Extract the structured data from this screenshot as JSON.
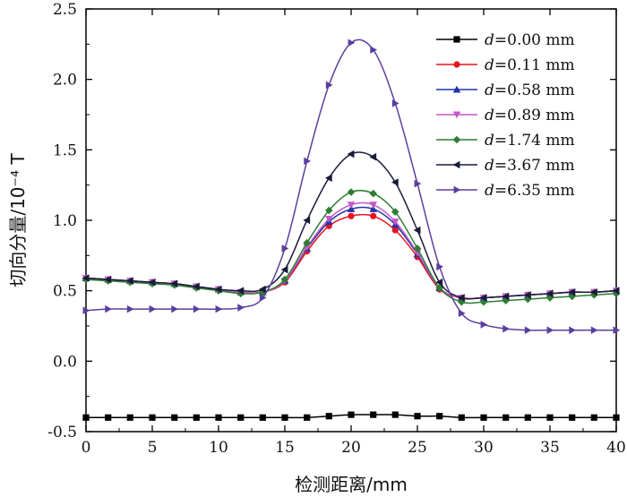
{
  "chart_data": {
    "type": "line",
    "title": "",
    "xlabel": "检测距离/mm",
    "ylabel": "切向分量/10⁻⁴ T",
    "xlim": [
      0,
      40
    ],
    "ylim": [
      -0.5,
      2.5
    ],
    "xticks": [
      0,
      5,
      10,
      15,
      20,
      25,
      30,
      35,
      40
    ],
    "xtick_labels": [
      "0",
      "5",
      "10",
      "15",
      "20",
      "25",
      "30",
      "35",
      "40"
    ],
    "yticks": [
      -0.5,
      0.0,
      0.5,
      1.0,
      1.5,
      2.0,
      2.5
    ],
    "ytick_labels": [
      "-0.5",
      "0.0",
      "0.5",
      "1.0",
      "1.5",
      "2.0",
      "2.5"
    ],
    "grid": false,
    "legend_position": "top-right",
    "legend_var": "d",
    "x": [
      0,
      1.67,
      3.33,
      5,
      6.67,
      8.33,
      10,
      11.67,
      13.33,
      15,
      16.67,
      18.33,
      20,
      21.67,
      23.33,
      25,
      26.67,
      28.33,
      30,
      31.67,
      33.33,
      35,
      36.67,
      38.33,
      40
    ],
    "series": [
      {
        "name": "=0.00 mm",
        "color": "#000000",
        "marker": "square",
        "values": [
          -0.4,
          -0.4,
          -0.4,
          -0.4,
          -0.4,
          -0.4,
          -0.4,
          -0.4,
          -0.4,
          -0.4,
          -0.4,
          -0.39,
          -0.38,
          -0.38,
          -0.38,
          -0.39,
          -0.39,
          -0.4,
          -0.4,
          -0.4,
          -0.4,
          -0.4,
          -0.4,
          -0.4,
          -0.4
        ]
      },
      {
        "name": "=0.11 mm",
        "color": "#e8141e",
        "marker": "circle",
        "values": [
          0.59,
          0.58,
          0.57,
          0.56,
          0.55,
          0.53,
          0.51,
          0.49,
          0.49,
          0.56,
          0.78,
          0.96,
          1.03,
          1.03,
          0.93,
          0.74,
          0.51,
          0.45,
          0.45,
          0.46,
          0.47,
          0.48,
          0.49,
          0.49,
          0.5
        ]
      },
      {
        "name": "=0.58 mm",
        "color": "#2233a8",
        "marker": "triangle-up",
        "values": [
          0.59,
          0.58,
          0.57,
          0.56,
          0.55,
          0.53,
          0.51,
          0.49,
          0.49,
          0.57,
          0.8,
          0.99,
          1.08,
          1.08,
          0.97,
          0.76,
          0.52,
          0.45,
          0.45,
          0.46,
          0.47,
          0.48,
          0.49,
          0.49,
          0.5
        ]
      },
      {
        "name": "=0.89 mm",
        "color": "#c45ac8",
        "marker": "triangle-down",
        "values": [
          0.59,
          0.58,
          0.57,
          0.56,
          0.55,
          0.53,
          0.51,
          0.49,
          0.49,
          0.57,
          0.81,
          1.01,
          1.11,
          1.11,
          0.99,
          0.77,
          0.52,
          0.45,
          0.45,
          0.46,
          0.47,
          0.48,
          0.49,
          0.49,
          0.5
        ]
      },
      {
        "name": "=1.74 mm",
        "color": "#2e7d32",
        "marker": "diamond",
        "values": [
          0.58,
          0.57,
          0.56,
          0.55,
          0.54,
          0.52,
          0.5,
          0.48,
          0.49,
          0.58,
          0.84,
          1.07,
          1.2,
          1.19,
          1.06,
          0.8,
          0.52,
          0.42,
          0.42,
          0.43,
          0.44,
          0.45,
          0.46,
          0.47,
          0.48
        ]
      },
      {
        "name": "=3.67 mm",
        "color": "#1a1a3a",
        "marker": "triangle-left",
        "values": [
          0.59,
          0.58,
          0.57,
          0.56,
          0.55,
          0.53,
          0.51,
          0.5,
          0.51,
          0.65,
          1.0,
          1.3,
          1.47,
          1.45,
          1.27,
          0.93,
          0.56,
          0.45,
          0.45,
          0.46,
          0.47,
          0.48,
          0.49,
          0.49,
          0.5
        ]
      },
      {
        "name": "=6.35 mm",
        "color": "#5b3f9e",
        "marker": "triangle-right",
        "values": [
          0.36,
          0.37,
          0.37,
          0.37,
          0.37,
          0.37,
          0.37,
          0.38,
          0.45,
          0.8,
          1.42,
          1.96,
          2.26,
          2.21,
          1.83,
          1.26,
          0.67,
          0.34,
          0.26,
          0.23,
          0.22,
          0.22,
          0.22,
          0.22,
          0.22
        ]
      }
    ]
  }
}
